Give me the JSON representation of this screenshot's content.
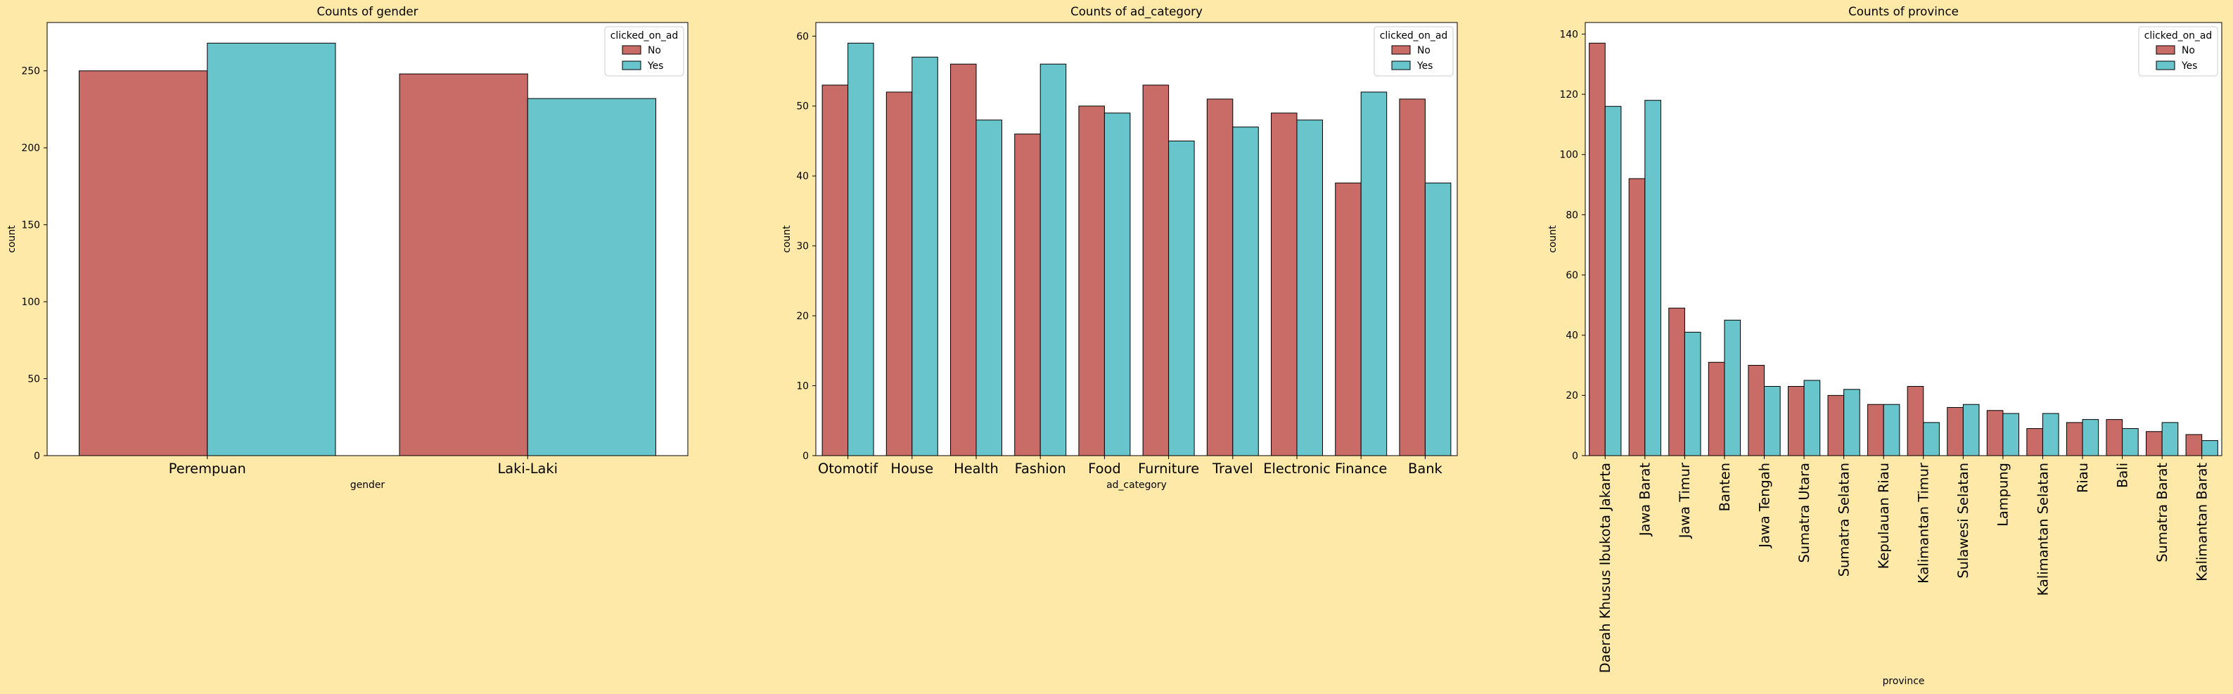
{
  "figure": {
    "background": "#ffe9a8",
    "plot_background": "#ffffff",
    "edge_color": "#000000",
    "legend_border": "#cccccc"
  },
  "chart_data": [
    {
      "type": "bar",
      "title": "Counts of gender",
      "xlabel": "gender",
      "ylabel": "count",
      "categories": [
        "Perempuan",
        "Laki-Laki"
      ],
      "series": [
        {
          "name": "No",
          "color": "#c96b66",
          "values": [
            250,
            248
          ]
        },
        {
          "name": "Yes",
          "color": "#68c5cc",
          "values": [
            268,
            232
          ]
        }
      ],
      "ylim": [
        0,
        281.4
      ],
      "yticks": [
        0,
        50,
        100,
        150,
        200,
        250
      ],
      "grid": false,
      "legend": {
        "title": "clicked_on_ad",
        "position": "top-right"
      }
    },
    {
      "type": "bar",
      "title": "Counts of ad_category",
      "xlabel": "ad_category",
      "ylabel": "count",
      "categories": [
        "Otomotif",
        "House",
        "Health",
        "Fashion",
        "Food",
        "Furniture",
        "Travel",
        "Electronic",
        "Finance",
        "Bank"
      ],
      "series": [
        {
          "name": "No",
          "color": "#c96b66",
          "values": [
            53,
            52,
            56,
            46,
            50,
            53,
            51,
            49,
            39,
            51
          ]
        },
        {
          "name": "Yes",
          "color": "#68c5cc",
          "values": [
            59,
            57,
            48,
            56,
            49,
            45,
            47,
            48,
            52,
            39
          ]
        }
      ],
      "ylim": [
        0,
        61.95
      ],
      "yticks": [
        0,
        10,
        20,
        30,
        40,
        50,
        60
      ],
      "grid": false,
      "legend": {
        "title": "clicked_on_ad",
        "position": "top-right"
      }
    },
    {
      "type": "bar",
      "title": "Counts of province",
      "xlabel": "province",
      "ylabel": "count",
      "categories": [
        "Daerah Khusus Ibukota Jakarta",
        "Jawa Barat",
        "Jawa Timur",
        "Banten",
        "Jawa Tengah",
        "Sumatra Utara",
        "Sumatra Selatan",
        "Kepulauan Riau",
        "Kalimantan Timur",
        "Sulawesi Selatan",
        "Lampung",
        "Kalimantan Selatan",
        "Riau",
        "Bali",
        "Sumatra Barat",
        "Kalimantan Barat"
      ],
      "series": [
        {
          "name": "No",
          "color": "#c96b66",
          "values": [
            137,
            92,
            49,
            31,
            30,
            23,
            20,
            17,
            23,
            16,
            15,
            9,
            11,
            12,
            8,
            7
          ]
        },
        {
          "name": "Yes",
          "color": "#68c5cc",
          "values": [
            116,
            118,
            41,
            45,
            23,
            25,
            22,
            17,
            11,
            17,
            14,
            14,
            12,
            9,
            11,
            5
          ]
        }
      ],
      "ylim": [
        0,
        143.85
      ],
      "yticks": [
        0,
        20,
        40,
        60,
        80,
        100,
        120,
        140
      ],
      "grid": false,
      "legend": {
        "title": "clicked_on_ad",
        "position": "top-right"
      }
    }
  ]
}
